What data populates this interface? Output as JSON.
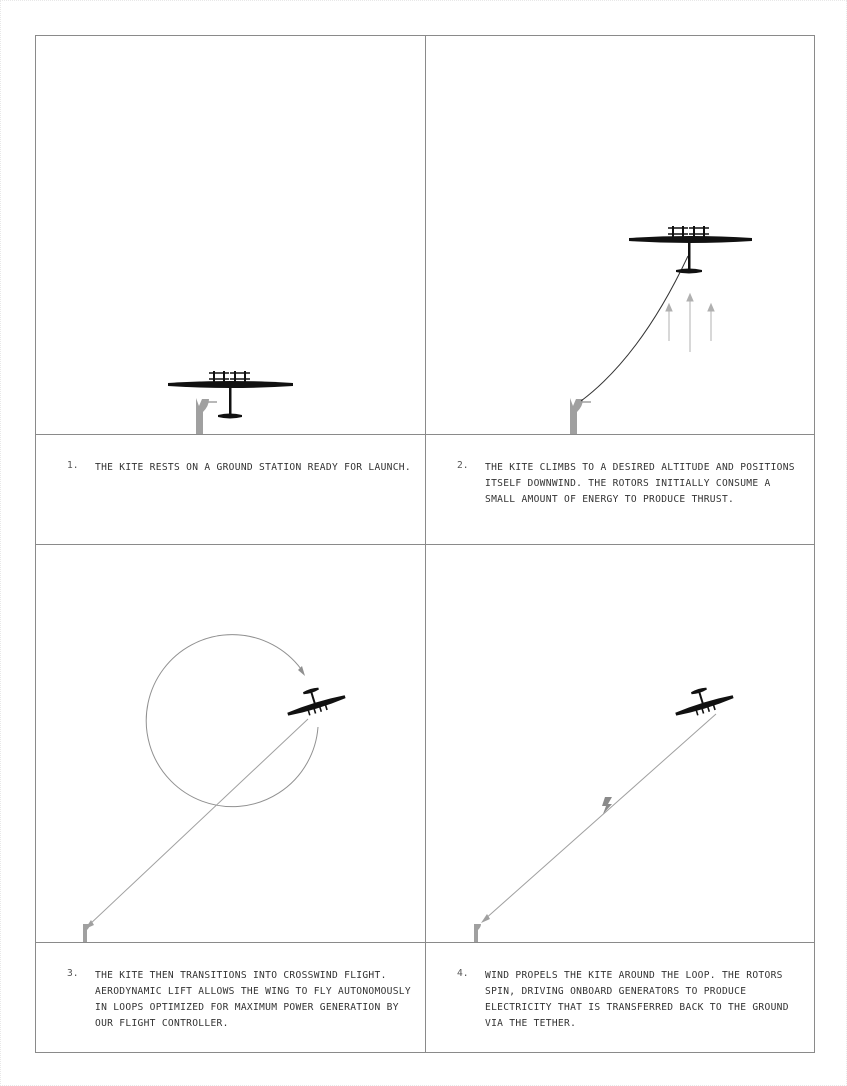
{
  "panels": [
    {
      "number": "1.",
      "text": "THE KITE RESTS ON A GROUND STATION READY FOR LAUNCH."
    },
    {
      "number": "2.",
      "text": "THE KITE CLIMBS TO A DESIRED ALTITUDE AND POSITIONS ITSELF DOWNWIND. THE ROTORS INITIALLY CONSUME A SMALL AMOUNT OF ENERGY TO PRODUCE THRUST."
    },
    {
      "number": "3.",
      "text": "THE KITE THEN TRANSITIONS INTO CROSSWIND FLIGHT. AERODYNAMIC LIFT ALLOWS THE WING TO FLY AUTONOMOUSLY IN LOOPS OPTIMIZED FOR MAXIMUM POWER GENERATION BY OUR FLIGHT CONTROLLER."
    },
    {
      "number": "4.",
      "text": "WIND PROPELS THE KITE AROUND THE LOOP. THE ROTORS SPIN, DRIVING ONBOARD GENERATORS TO PRODUCE ELECTRICITY THAT IS TRANSFERRED BACK TO THE GROUND VIA THE TETHER."
    }
  ],
  "colors": {
    "border": "#8a8a8a",
    "kite": "#111111",
    "ground_station": "#a0a0a0",
    "tether": "#333333",
    "wind_arrow": "#b0b0b0"
  }
}
